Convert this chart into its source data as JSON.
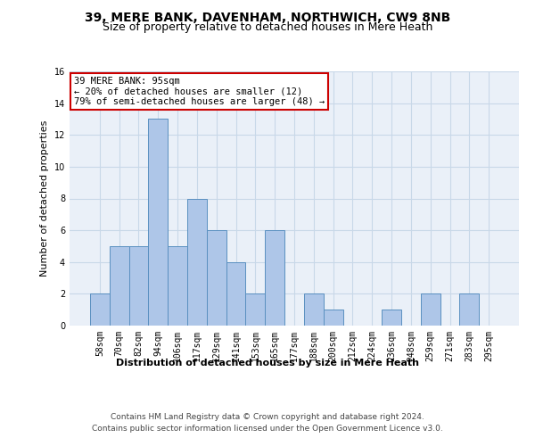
{
  "title": "39, MERE BANK, DAVENHAM, NORTHWICH, CW9 8NB",
  "subtitle": "Size of property relative to detached houses in Mere Heath",
  "xlabel_bottom": "Distribution of detached houses by size in Mere Heath",
  "ylabel": "Number of detached properties",
  "categories": [
    "58sqm",
    "70sqm",
    "82sqm",
    "94sqm",
    "106sqm",
    "117sqm",
    "129sqm",
    "141sqm",
    "153sqm",
    "165sqm",
    "177sqm",
    "188sqm",
    "200sqm",
    "212sqm",
    "224sqm",
    "236sqm",
    "248sqm",
    "259sqm",
    "271sqm",
    "283sqm",
    "295sqm"
  ],
  "values": [
    2,
    5,
    5,
    13,
    5,
    8,
    6,
    4,
    2,
    6,
    0,
    2,
    1,
    0,
    0,
    1,
    0,
    2,
    0,
    2,
    0
  ],
  "bar_color": "#aec6e8",
  "bar_edge_color": "#5a90c0",
  "annotation_box_text": "39 MERE BANK: 95sqm\n← 20% of detached houses are smaller (12)\n79% of semi-detached houses are larger (48) →",
  "annotation_box_color": "#ffffff",
  "annotation_box_edge_color": "#cc0000",
  "ylim": [
    0,
    16
  ],
  "yticks": [
    0,
    2,
    4,
    6,
    8,
    10,
    12,
    14,
    16
  ],
  "grid_color": "#c8d8e8",
  "background_color": "#eaf0f8",
  "footer_line1": "Contains HM Land Registry data © Crown copyright and database right 2024.",
  "footer_line2": "Contains public sector information licensed under the Open Government Licence v3.0.",
  "title_fontsize": 10,
  "subtitle_fontsize": 9,
  "xlabel_fontsize": 8,
  "ylabel_fontsize": 8,
  "tick_fontsize": 7,
  "annotation_fontsize": 7.5,
  "footer_fontsize": 6.5
}
